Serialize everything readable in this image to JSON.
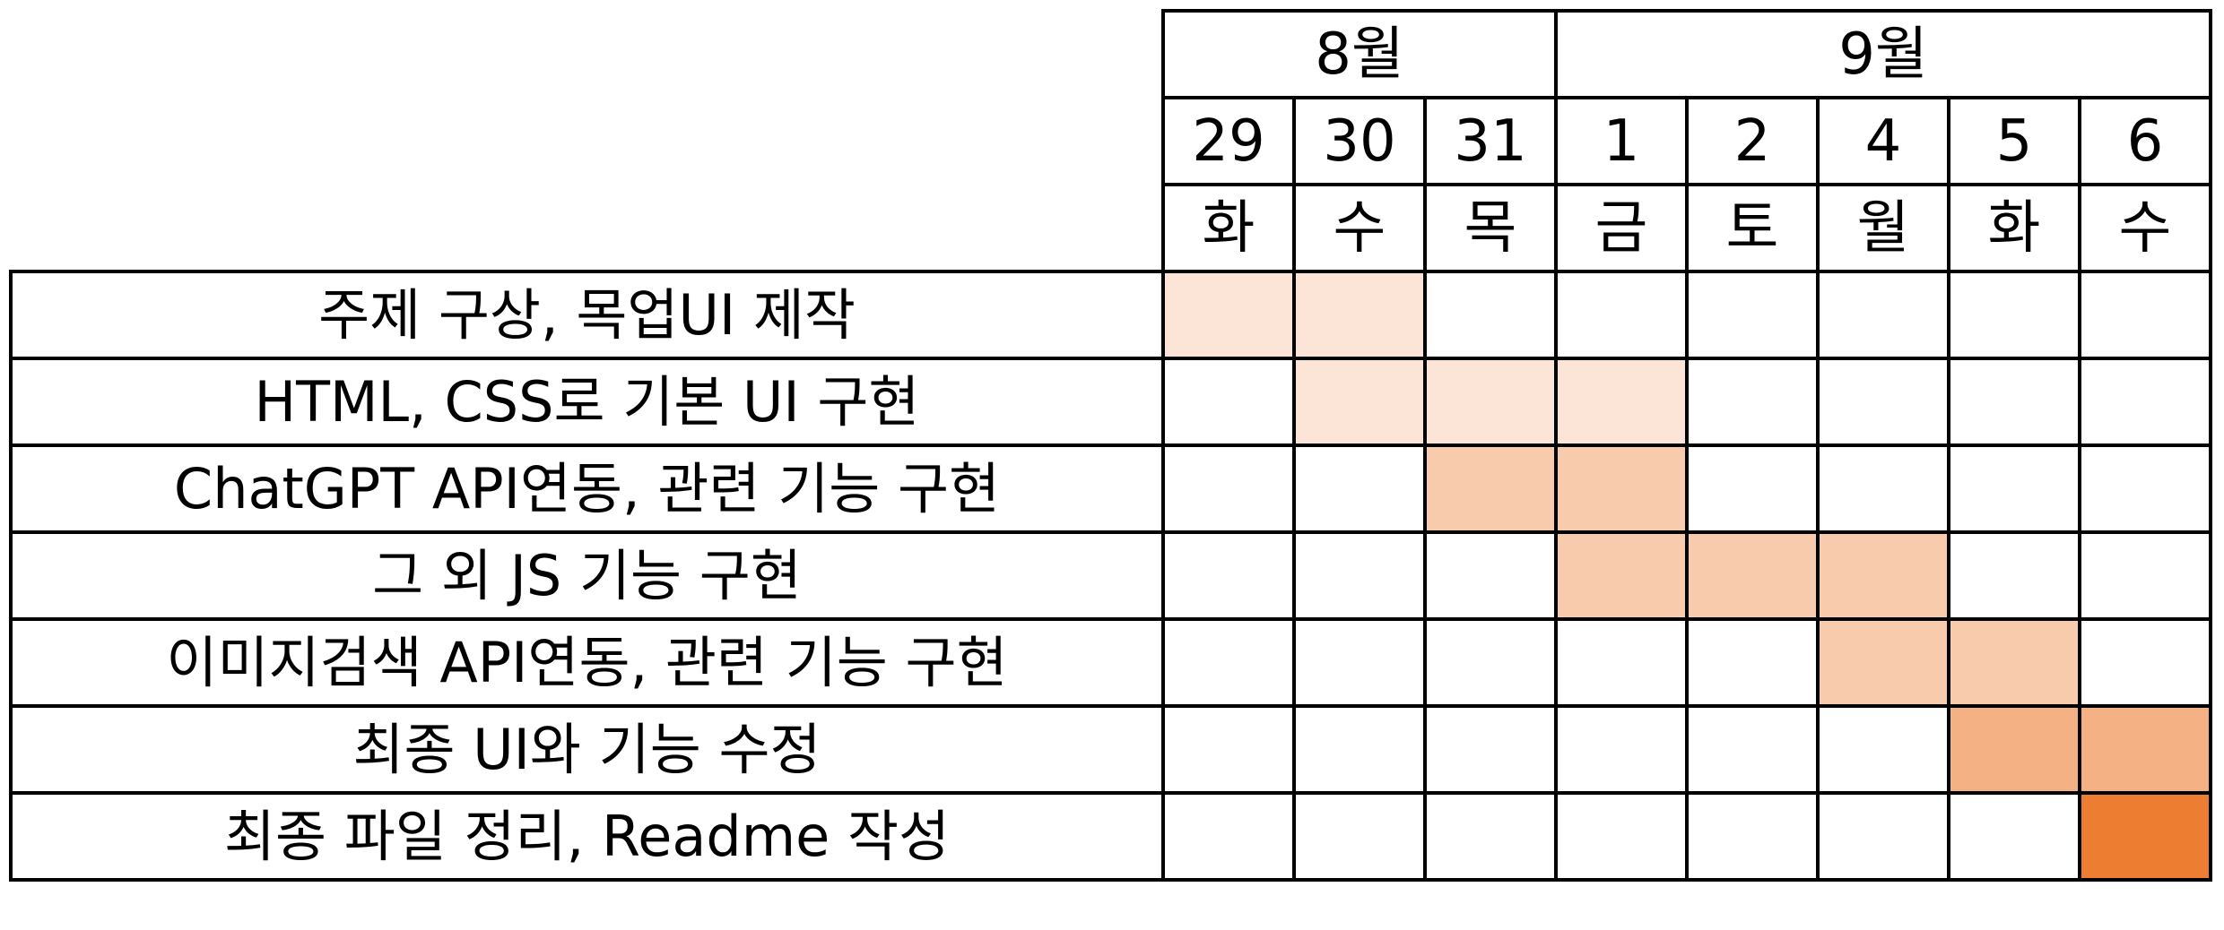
{
  "colors": {
    "light": "#fce4d6",
    "medium": "#f8cbad",
    "strong": "#f4b183",
    "dark": "#ed7d31",
    "border": "#000000"
  },
  "months": [
    {
      "label": "8월",
      "span": 3
    },
    {
      "label": "9월",
      "span": 5
    }
  ],
  "days": [
    {
      "date": "29",
      "weekday": "화"
    },
    {
      "date": "30",
      "weekday": "수"
    },
    {
      "date": "31",
      "weekday": "목"
    },
    {
      "date": "1",
      "weekday": "금"
    },
    {
      "date": "2",
      "weekday": "토"
    },
    {
      "date": "4",
      "weekday": "월"
    },
    {
      "date": "5",
      "weekday": "화"
    },
    {
      "date": "6",
      "weekday": "수"
    }
  ],
  "tasks": [
    {
      "label": "주제 구상, 목업UI 제작",
      "cells": [
        1,
        1,
        0,
        0,
        0,
        0,
        0,
        0
      ]
    },
    {
      "label": "HTML, CSS로 기본 UI 구현",
      "cells": [
        0,
        1,
        1,
        1,
        0,
        0,
        0,
        0
      ]
    },
    {
      "label": "ChatGPT API연동, 관련 기능 구현",
      "cells": [
        0,
        0,
        2,
        2,
        0,
        0,
        0,
        0
      ]
    },
    {
      "label": "그 외 JS 기능 구현",
      "cells": [
        0,
        0,
        0,
        2,
        2,
        2,
        0,
        0
      ]
    },
    {
      "label": "이미지검색 API연동, 관련 기능 구현",
      "cells": [
        0,
        0,
        0,
        0,
        0,
        2,
        2,
        0
      ]
    },
    {
      "label": "최종 UI와 기능 수정",
      "cells": [
        0,
        0,
        0,
        0,
        0,
        0,
        3,
        3
      ]
    },
    {
      "label": "최종 파일 정리, Readme 작성",
      "cells": [
        0,
        0,
        0,
        0,
        0,
        0,
        0,
        4
      ]
    }
  ],
  "shade_levels": [
    "#ffffff",
    "#fce4d6",
    "#f8cbad",
    "#f4b183",
    "#ed7d31"
  ]
}
